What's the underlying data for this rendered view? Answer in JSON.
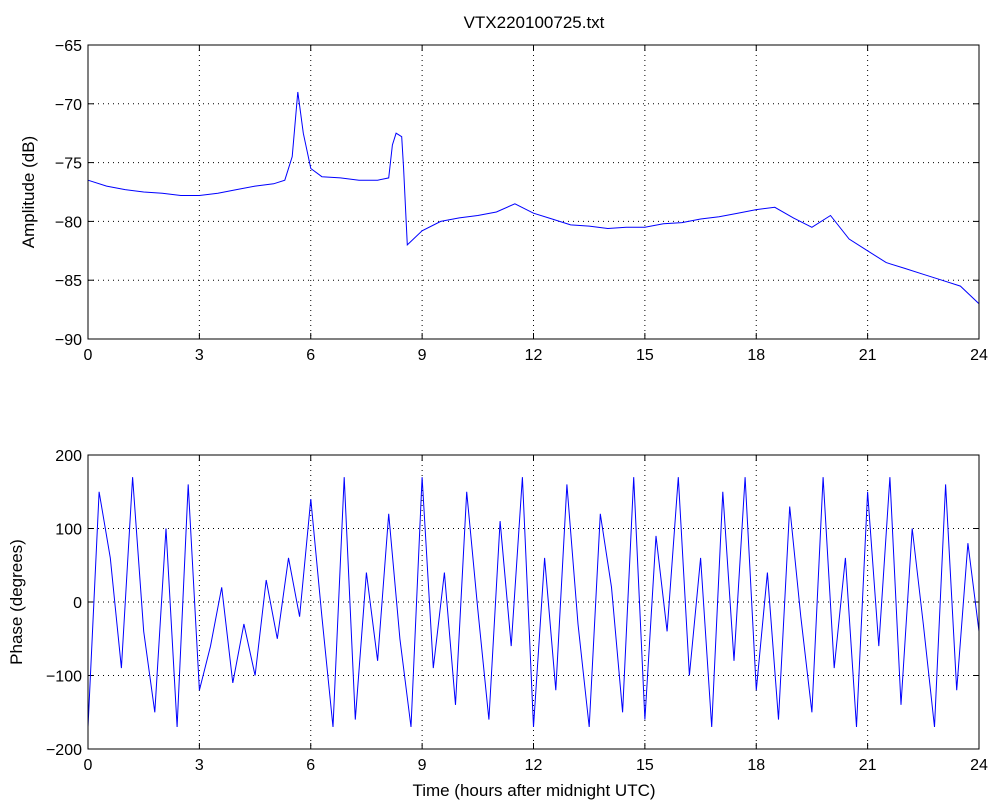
{
  "chart_data": [
    {
      "type": "line",
      "title": "VTX220100725.txt",
      "xlabel": "",
      "ylabel": "Amplitude (dB)",
      "xlim": [
        0,
        24
      ],
      "ylim": [
        -90,
        -65
      ],
      "xticks": [
        "0",
        "3",
        "6",
        "9",
        "12",
        "15",
        "18",
        "21",
        "24"
      ],
      "yticks": [
        "−65",
        "−70",
        "−75",
        "−80",
        "−85",
        "−90"
      ],
      "grid": true,
      "color": "#0000ff",
      "series": [
        {
          "x": [
            0,
            0.5,
            1.0,
            1.5,
            2.0,
            2.5,
            3.0,
            3.5,
            4.0,
            4.5,
            5.0,
            5.3,
            5.5,
            5.65,
            5.8,
            6.0,
            6.3,
            6.8,
            7.3,
            7.8,
            8.1,
            8.2,
            8.3,
            8.45,
            8.5,
            8.6,
            9.0,
            9.5,
            10.0,
            10.5,
            11.0,
            11.5,
            12.0,
            12.5,
            13.0,
            13.5,
            14.0,
            14.5,
            15.0,
            15.5,
            16.0,
            16.5,
            17.0,
            17.5,
            18.0,
            18.5,
            19.0,
            19.5,
            20.0,
            20.5,
            21.0,
            21.5,
            22.0,
            22.5,
            23.0,
            23.5,
            24.0
          ],
          "values": [
            -76.5,
            -77,
            -77.3,
            -77.5,
            -77.6,
            -77.8,
            -77.8,
            -77.6,
            -77.3,
            -77,
            -76.8,
            -76.5,
            -74.5,
            -69,
            -72.5,
            -75.5,
            -76.2,
            -76.3,
            -76.5,
            -76.5,
            -76.3,
            -73.5,
            -72.5,
            -72.8,
            -75.5,
            -82,
            -80.8,
            -80,
            -79.7,
            -79.5,
            -79.2,
            -78.5,
            -79.3,
            -79.8,
            -80.3,
            -80.4,
            -80.6,
            -80.5,
            -80.5,
            -80.2,
            -80.1,
            -79.8,
            -79.6,
            -79.3,
            -79.0,
            -78.8,
            -79.7,
            -80.5,
            -79.5,
            -81.5,
            -82.5,
            -83.5,
            -84,
            -84.5,
            -85,
            -85.5,
            -87
          ]
        }
      ]
    },
    {
      "type": "line",
      "title": "",
      "xlabel": "Time (hours after midnight UTC)",
      "ylabel": "Phase (degrees)",
      "xlim": [
        0,
        24
      ],
      "ylim": [
        -200,
        200
      ],
      "xticks": [
        "0",
        "3",
        "6",
        "9",
        "12",
        "15",
        "18",
        "21",
        "24"
      ],
      "yticks": [
        "200",
        "100",
        "0",
        "−100",
        "−200"
      ],
      "grid": true,
      "color": "#0000ff",
      "series": [
        {
          "x": [
            0,
            0.3,
            0.6,
            0.9,
            1.2,
            1.5,
            1.8,
            2.1,
            2.4,
            2.7,
            3.0,
            3.3,
            3.6,
            3.9,
            4.2,
            4.5,
            4.8,
            5.1,
            5.4,
            5.7,
            6.0,
            6.3,
            6.6,
            6.9,
            7.2,
            7.5,
            7.8,
            8.1,
            8.4,
            8.7,
            9.0,
            9.3,
            9.6,
            9.9,
            10.2,
            10.5,
            10.8,
            11.1,
            11.4,
            11.7,
            12.0,
            12.3,
            12.6,
            12.9,
            13.2,
            13.5,
            13.8,
            14.1,
            14.4,
            14.7,
            15.0,
            15.3,
            15.6,
            15.9,
            16.2,
            16.5,
            16.8,
            17.1,
            17.4,
            17.7,
            18.0,
            18.3,
            18.6,
            18.9,
            19.2,
            19.5,
            19.8,
            20.1,
            20.4,
            20.7,
            21.0,
            21.3,
            21.6,
            21.9,
            22.2,
            22.5,
            22.8,
            23.1,
            23.4,
            23.7,
            24.0
          ],
          "values": [
            -170,
            150,
            60,
            -90,
            170,
            -40,
            -150,
            100,
            -170,
            160,
            -120,
            -60,
            20,
            -110,
            -30,
            -100,
            30,
            -50,
            60,
            -20,
            140,
            -20,
            -170,
            170,
            -160,
            40,
            -80,
            120,
            -50,
            -170,
            170,
            -90,
            40,
            -140,
            150,
            -10,
            -160,
            110,
            -60,
            170,
            -170,
            60,
            -120,
            160,
            -30,
            -170,
            120,
            20,
            -150,
            170,
            -160,
            90,
            -40,
            170,
            -100,
            60,
            -170,
            150,
            -80,
            170,
            -120,
            40,
            -160,
            130,
            -20,
            -150,
            170,
            -90,
            60,
            -170,
            150,
            -60,
            170,
            -140,
            100,
            -30,
            -170,
            160,
            -120,
            80,
            -40
          ]
        }
      ]
    }
  ]
}
